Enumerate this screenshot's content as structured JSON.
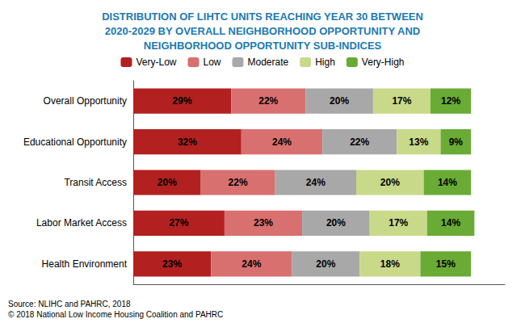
{
  "chart_data": {
    "type": "bar",
    "orientation": "horizontal",
    "stacked": true,
    "title": "DISTRIBUTION OF LIHTC UNITS REACHING YEAR 30 BETWEEN\n2020-2029 BY OVERALL NEIGHBORHOOD OPPORTUNITY AND\nNEIGHBORHOOD OPPORTUNITY SUB-INDICES",
    "categories": [
      "Overall Opportunity",
      "Educational Opportunity",
      "Transit Access",
      "Labor Market Access",
      "Health Environment"
    ],
    "series": [
      {
        "name": "Very-Low",
        "color": "#b32020",
        "values": [
          29,
          32,
          20,
          27,
          23
        ],
        "value_labels": [
          "29%",
          "32%",
          "20%",
          "27%",
          "23%"
        ]
      },
      {
        "name": "Low",
        "color": "#d97070",
        "values": [
          22,
          24,
          22,
          23,
          24
        ],
        "value_labels": [
          "22%",
          "24%",
          "22%",
          "23%",
          "24%"
        ]
      },
      {
        "name": "Moderate",
        "color": "#a8a8a8",
        "values": [
          20,
          22,
          24,
          20,
          20
        ],
        "value_labels": [
          "20%",
          "22%",
          "24%",
          "20%",
          "20%"
        ]
      },
      {
        "name": "High",
        "color": "#c8d98a",
        "values": [
          17,
          13,
          20,
          17,
          18
        ],
        "value_labels": [
          "17%",
          "13%",
          "20%",
          "17%",
          "18%"
        ]
      },
      {
        "name": "Very-High",
        "color": "#6aab35",
        "values": [
          12,
          9,
          14,
          14,
          15
        ],
        "value_labels": [
          "12%",
          "9%",
          "14%",
          "14%",
          "15%"
        ]
      }
    ],
    "xlim": [
      0,
      110
    ],
    "data_labels": true,
    "tick_labels": "y",
    "grid": false,
    "legend": "top",
    "annotations": [
      "Source: NLIHC and PAHRC, 2018\n© 2018 National Low Income Housing Coalition and PAHRC"
    ]
  }
}
